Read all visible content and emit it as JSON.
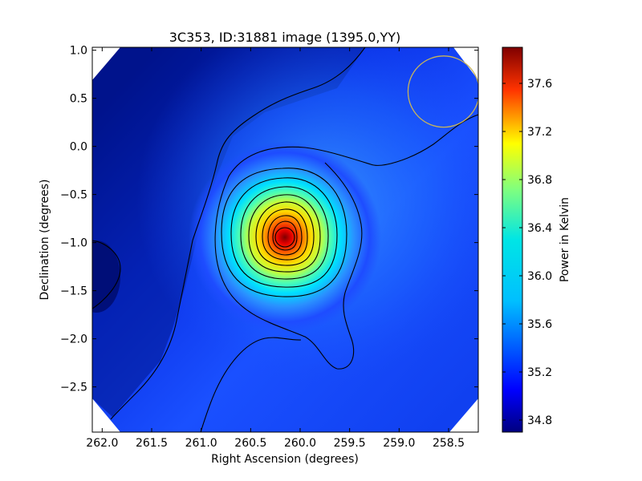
{
  "chart_data": {
    "type": "heatmap",
    "title": "3C353, ID:31881 image (1395.0,YY)",
    "xlabel": "Right Ascension (degrees)",
    "ylabel": "Declination (degrees)",
    "xlim": [
      262.1,
      258.2
    ],
    "ylim": [
      -2.97,
      1.03
    ],
    "x_ticks": [
      262.0,
      261.5,
      261.0,
      260.5,
      260.0,
      259.5,
      259.0,
      258.5
    ],
    "x_tick_labels": [
      "262.0",
      "261.5",
      "261.0",
      "260.5",
      "260.0",
      "259.5",
      "259.0",
      "258.5"
    ],
    "y_ticks": [
      1.0,
      0.5,
      0.0,
      -0.5,
      -1.0,
      -1.5,
      -2.0,
      -2.5
    ],
    "y_tick_labels": [
      "1.0",
      "0.5",
      "0.0",
      "−0.5",
      "−1.0",
      "−1.5",
      "−2.0",
      "−2.5"
    ],
    "colormap": "jet",
    "source": {
      "ra": 260.12,
      "dec": -0.96,
      "peak": 37.9
    },
    "background_level": 35.1,
    "value_range": [
      34.7,
      37.9
    ],
    "beam_circle": {
      "ra": 258.55,
      "dec": 0.57,
      "radius_deg": 0.36,
      "color": "#c8b45a"
    },
    "colorbar": {
      "label": "Power in Kelvin",
      "range": [
        34.7,
        37.9
      ],
      "ticks": [
        34.8,
        35.2,
        35.6,
        36.0,
        36.4,
        36.8,
        37.2,
        37.6
      ],
      "tick_labels": [
        "34.8",
        "35.2",
        "35.6",
        "36.0",
        "36.4",
        "36.8",
        "37.2",
        "37.6"
      ]
    }
  }
}
